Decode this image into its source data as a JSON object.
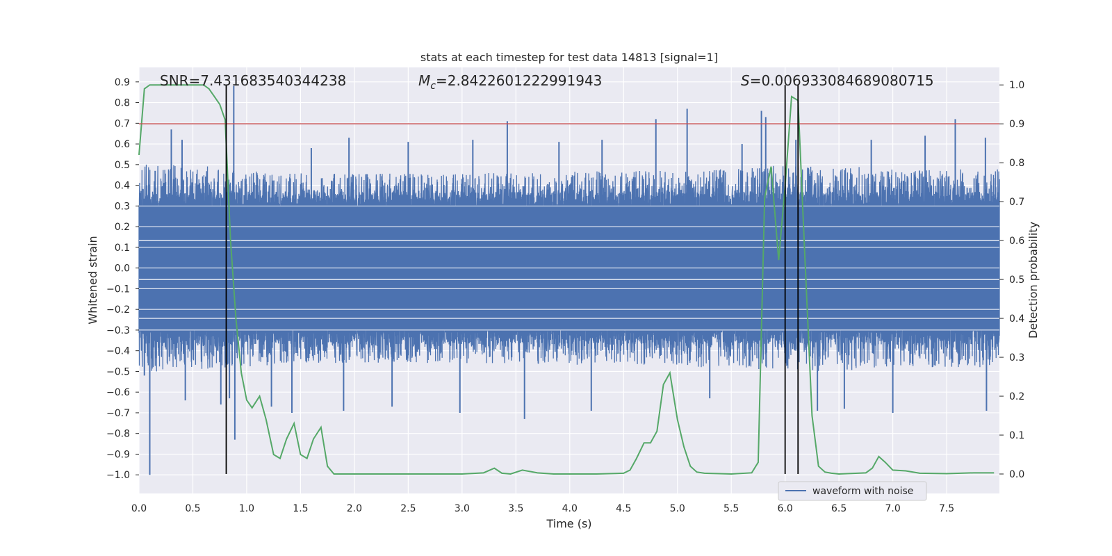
{
  "chart_data": {
    "type": "line",
    "title": "stats at each timestep for test data 14813 [signal=1]",
    "xlabel": "Time (s)",
    "ylabel_left": "Whitened strain",
    "ylabel_right": "Detection probability",
    "xlim": [
      0,
      7.99
    ],
    "ylim_left": [
      -1.09,
      0.97
    ],
    "ylim_right": [
      -0.05,
      1.045
    ],
    "x_ticks": [
      0.0,
      0.5,
      1.0,
      1.5,
      2.0,
      2.5,
      3.0,
      3.5,
      4.0,
      4.5,
      5.0,
      5.5,
      6.0,
      6.5,
      7.0,
      7.5
    ],
    "x_tick_labels": [
      "0.0",
      "0.5",
      "1.0",
      "1.5",
      "2.0",
      "2.5",
      "3.0",
      "3.5",
      "4.0",
      "4.5",
      "5.0",
      "5.5",
      "6.0",
      "6.5",
      "7.0",
      "7.5"
    ],
    "y_ticks_left": [
      0.9,
      0.8,
      0.7,
      0.6,
      0.5,
      0.4,
      0.3,
      0.2,
      0.1,
      0.0,
      -0.1,
      -0.2,
      -0.3,
      -0.4,
      -0.5,
      -0.6,
      -0.7,
      -0.8,
      -0.9,
      -1.0
    ],
    "y_tick_labels_left": [
      "0.9",
      "0.8",
      "0.7",
      "0.6",
      "0.5",
      "0.4",
      "0.3",
      "0.2",
      "0.1",
      "0.0",
      "−0.1",
      "−0.2",
      "−0.3",
      "−0.4",
      "−0.5",
      "−0.6",
      "−0.7",
      "−0.8",
      "−0.9",
      "−1.0"
    ],
    "y_ticks_right": [
      1.0,
      0.9,
      0.8,
      0.7,
      0.6,
      0.5,
      0.4,
      0.3,
      0.2,
      0.1,
      0.0
    ],
    "y_tick_labels_right": [
      "1.0",
      "0.9",
      "0.8",
      "0.7",
      "0.6",
      "0.5",
      "0.4",
      "0.3",
      "0.2",
      "0.1",
      "0.0"
    ],
    "annotations": {
      "snr": "SNR=7.431683540344238",
      "mc_prefix": "M",
      "mc_sub": "c",
      "mc_value": "=2.8422601222991943",
      "s_prefix": "S",
      "s_value": "=0.006933084689080715"
    },
    "threshold_right": 0.9,
    "vertical_lines_x": [
      0.81,
      6.0,
      6.12
    ],
    "legend": {
      "label": "waveform with noise",
      "placement": "lower-right"
    },
    "grid": true,
    "colors": {
      "waveform": "#4c72b0",
      "probability": "#55a868",
      "threshold": "#c44e52",
      "vlines": "#000000",
      "plot_bg": "#eaeaf2",
      "grid": "#ffffff"
    },
    "waveform_series": {
      "name": "waveform with noise",
      "envelope_x": [
        0.0,
        0.5,
        1.0,
        1.5,
        2.0,
        2.5,
        3.0,
        3.5,
        4.0,
        4.5,
        5.0,
        5.5,
        6.0,
        6.5,
        7.0,
        7.5,
        7.99
      ],
      "envelope_upper": [
        0.5,
        0.5,
        0.47,
        0.46,
        0.46,
        0.46,
        0.46,
        0.46,
        0.47,
        0.47,
        0.48,
        0.48,
        0.5,
        0.5,
        0.48,
        0.48,
        0.48
      ],
      "envelope_lower": [
        -0.5,
        -0.5,
        -0.48,
        -0.46,
        -0.46,
        -0.46,
        -0.46,
        -0.46,
        -0.47,
        -0.47,
        -0.48,
        -0.48,
        -0.5,
        -0.5,
        -0.48,
        -0.48,
        -0.48
      ],
      "spikes": [
        {
          "x": 0.1,
          "y": -1.0
        },
        {
          "x": 0.05,
          "y": -0.52
        },
        {
          "x": 0.15,
          "y": 0.47
        },
        {
          "x": 0.3,
          "y": 0.67
        },
        {
          "x": 0.4,
          "y": 0.62
        },
        {
          "x": 0.43,
          "y": -0.64
        },
        {
          "x": 0.76,
          "y": -0.66
        },
        {
          "x": 0.84,
          "y": -0.63
        },
        {
          "x": 0.88,
          "y": 0.88
        },
        {
          "x": 0.89,
          "y": -0.83
        },
        {
          "x": 1.23,
          "y": -0.67
        },
        {
          "x": 1.42,
          "y": -0.7
        },
        {
          "x": 1.6,
          "y": 0.58
        },
        {
          "x": 1.9,
          "y": -0.69
        },
        {
          "x": 1.95,
          "y": 0.63
        },
        {
          "x": 2.35,
          "y": -0.67
        },
        {
          "x": 2.5,
          "y": 0.61
        },
        {
          "x": 2.98,
          "y": -0.7
        },
        {
          "x": 3.1,
          "y": 0.62
        },
        {
          "x": 3.42,
          "y": 0.71
        },
        {
          "x": 3.58,
          "y": -0.73
        },
        {
          "x": 3.9,
          "y": 0.61
        },
        {
          "x": 4.2,
          "y": -0.69
        },
        {
          "x": 4.3,
          "y": 0.62
        },
        {
          "x": 4.8,
          "y": 0.72
        },
        {
          "x": 5.09,
          "y": 0.77
        },
        {
          "x": 5.3,
          "y": -0.63
        },
        {
          "x": 5.6,
          "y": 0.6
        },
        {
          "x": 5.78,
          "y": 0.76
        },
        {
          "x": 5.82,
          "y": 0.73
        },
        {
          "x": 6.1,
          "y": 0.62
        },
        {
          "x": 6.3,
          "y": -0.69
        },
        {
          "x": 6.55,
          "y": -0.68
        },
        {
          "x": 6.8,
          "y": 0.62
        },
        {
          "x": 7.0,
          "y": -0.7
        },
        {
          "x": 7.3,
          "y": 0.64
        },
        {
          "x": 7.58,
          "y": 0.72
        },
        {
          "x": 7.86,
          "y": 0.63
        },
        {
          "x": 7.87,
          "y": -0.69
        }
      ]
    },
    "probability_series": {
      "x": [
        0.0,
        0.05,
        0.1,
        0.2,
        0.3,
        0.4,
        0.5,
        0.6,
        0.65,
        0.7,
        0.75,
        0.8,
        0.85,
        0.9,
        0.95,
        1.0,
        1.05,
        1.12,
        1.18,
        1.25,
        1.31,
        1.37,
        1.44,
        1.5,
        1.56,
        1.62,
        1.69,
        1.75,
        1.81,
        1.87,
        2.0,
        2.25,
        2.5,
        2.75,
        3.0,
        3.2,
        3.3,
        3.37,
        3.45,
        3.56,
        3.7,
        3.85,
        4.0,
        4.25,
        4.5,
        4.56,
        4.62,
        4.69,
        4.75,
        4.81,
        4.87,
        4.93,
        5.0,
        5.06,
        5.12,
        5.18,
        5.25,
        5.5,
        5.69,
        5.75,
        5.81,
        5.87,
        5.94,
        6.0,
        6.06,
        6.12,
        6.18,
        6.25,
        6.31,
        6.37,
        6.43,
        6.5,
        6.75,
        6.81,
        6.87,
        6.93,
        7.0,
        7.12,
        7.25,
        7.5,
        7.75,
        7.94
      ],
      "y": [
        0.82,
        0.99,
        1.0,
        1.0,
        1.0,
        1.0,
        1.0,
        1.0,
        0.99,
        0.97,
        0.95,
        0.91,
        0.6,
        0.4,
        0.26,
        0.19,
        0.17,
        0.2,
        0.14,
        0.05,
        0.04,
        0.09,
        0.13,
        0.05,
        0.04,
        0.09,
        0.12,
        0.02,
        0.0,
        0.0,
        0.0,
        0.0,
        0.0,
        0.0,
        0.0,
        0.003,
        0.015,
        0.002,
        0.0,
        0.01,
        0.003,
        0.0,
        0.0,
        0.0,
        0.002,
        0.01,
        0.04,
        0.08,
        0.08,
        0.11,
        0.23,
        0.26,
        0.14,
        0.07,
        0.02,
        0.005,
        0.002,
        0.0,
        0.003,
        0.03,
        0.71,
        0.79,
        0.55,
        0.74,
        0.97,
        0.96,
        0.58,
        0.15,
        0.02,
        0.005,
        0.002,
        0.0,
        0.003,
        0.015,
        0.045,
        0.03,
        0.01,
        0.008,
        0.002,
        0.001,
        0.003,
        0.003
      ]
    }
  }
}
